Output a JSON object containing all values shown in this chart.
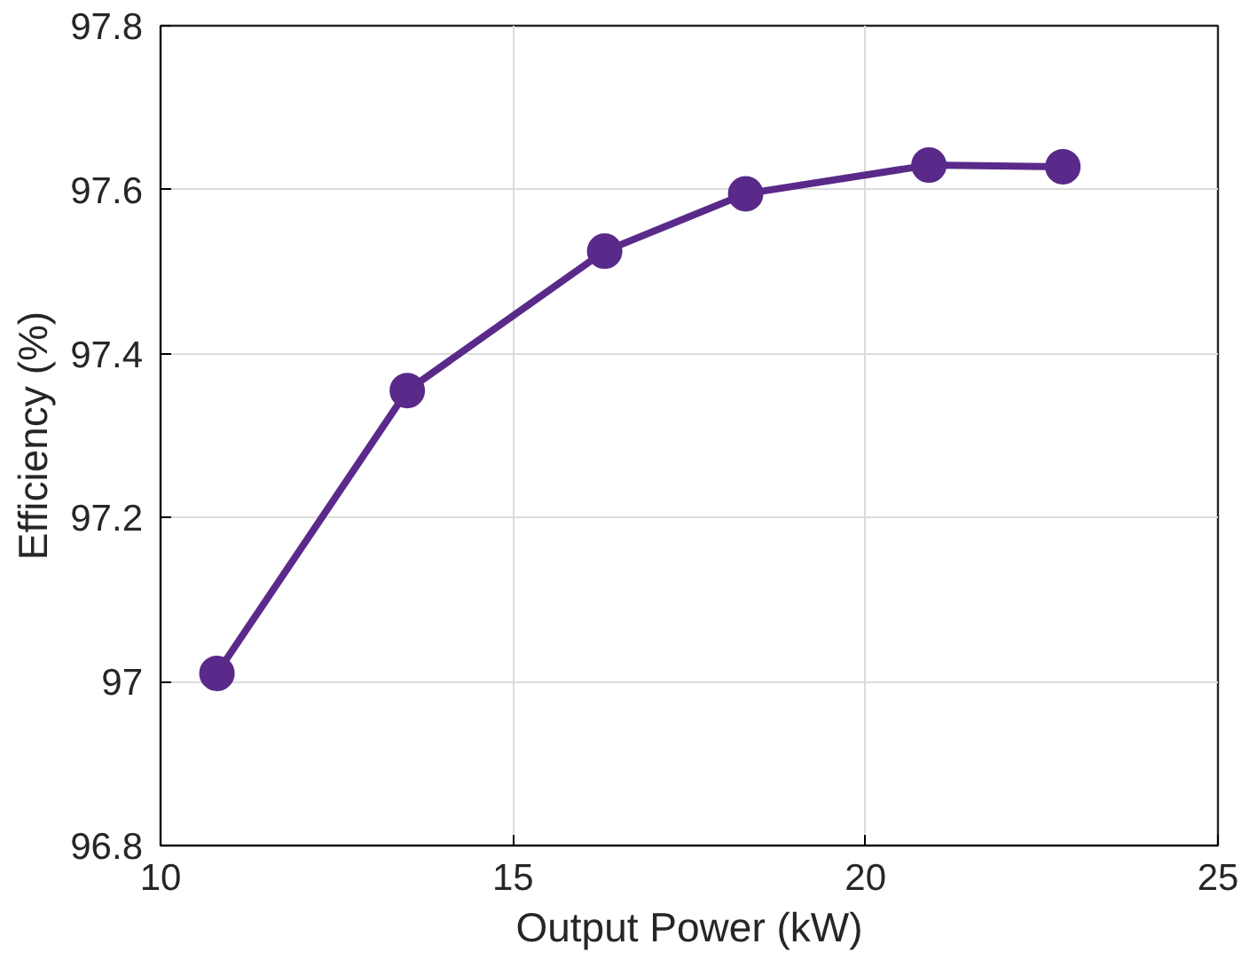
{
  "chart_data": {
    "type": "line",
    "xlabel": "Output Power (kW)",
    "ylabel": "Efficiency (%)",
    "x": [
      10.8,
      13.5,
      16.3,
      18.3,
      20.9,
      22.8
    ],
    "series": [
      {
        "color": "#5a2a8a",
        "values": [
          97.01,
          97.355,
          97.525,
          97.595,
          97.63,
          97.628
        ]
      }
    ],
    "xlim": [
      10,
      25
    ],
    "xticks": [
      10,
      15,
      20,
      25
    ],
    "ylim": [
      96.8,
      97.8
    ],
    "yticks": [
      96.8,
      97,
      97.2,
      97.4,
      97.6,
      97.8
    ],
    "grid": true,
    "marker": "circle",
    "line_style": "solid"
  }
}
